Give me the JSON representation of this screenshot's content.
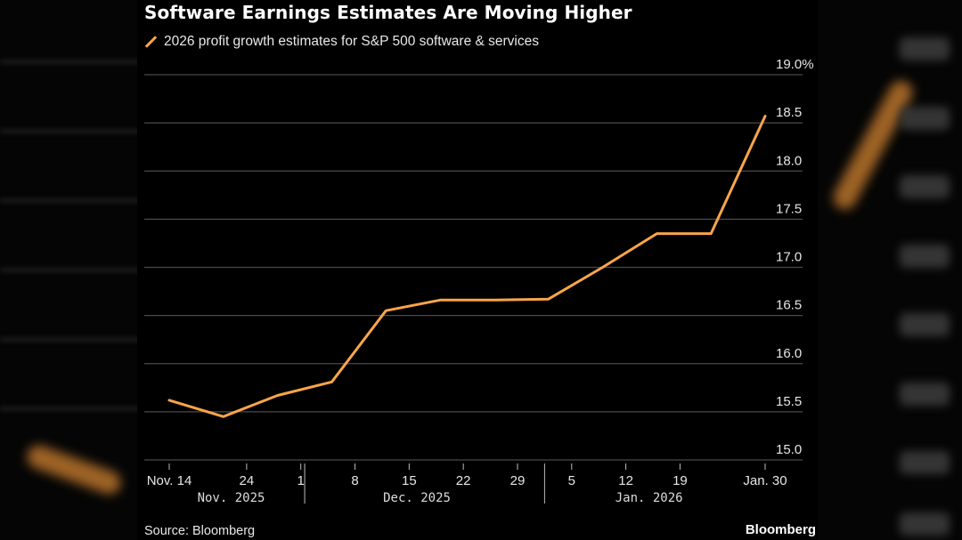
{
  "colors": {
    "series": "#f9a54a",
    "grid": "#4a4a4a",
    "background": "#000000",
    "text": "#e6e6e6"
  },
  "title": "Software Earnings Estimates Are Moving Higher",
  "source": "Source: Bloomberg",
  "brand": "Bloomberg",
  "chart_data": {
    "type": "line",
    "title": "Software Earnings Estimates Are Moving Higher",
    "xlabel": "",
    "ylabel": "",
    "ylim": [
      15.0,
      19.0
    ],
    "y_ticks": [
      {
        "value": 19.0,
        "label": "19.0%"
      },
      {
        "value": 18.5,
        "label": "18.5"
      },
      {
        "value": 18.0,
        "label": "18.0"
      },
      {
        "value": 17.5,
        "label": "17.5"
      },
      {
        "value": 17.0,
        "label": "17.0"
      },
      {
        "value": 16.5,
        "label": "16.5"
      },
      {
        "value": 16.0,
        "label": "16.0"
      },
      {
        "value": 15.5,
        "label": "15.5"
      },
      {
        "value": 15.0,
        "label": "15.0"
      }
    ],
    "x_start": "2025-11-14",
    "x_end": "2026-01-30",
    "x_ticks": [
      {
        "day": 0,
        "label": "Nov. 14"
      },
      {
        "day": 10,
        "label": "24"
      },
      {
        "day": 17,
        "label": "1"
      },
      {
        "day": 24,
        "label": "8"
      },
      {
        "day": 31,
        "label": "15"
      },
      {
        "day": 38,
        "label": "22"
      },
      {
        "day": 45,
        "label": "29"
      },
      {
        "day": 52,
        "label": "5"
      },
      {
        "day": 59,
        "label": "12"
      },
      {
        "day": 66,
        "label": "19"
      },
      {
        "day": 77,
        "label": "Jan. 30"
      }
    ],
    "month_labels": [
      {
        "label": "Nov. 2025",
        "center_day": 8
      },
      {
        "label": "Dec. 2025",
        "center_day": 32
      },
      {
        "label": "Jan. 2026",
        "center_day": 62
      }
    ],
    "month_separators": [
      17.5,
      48.5
    ],
    "legend": [
      "2026 profit growth estimates for S&P 500 software & services"
    ],
    "series": [
      {
        "name": "2026 profit growth estimates for S&P 500 software & services",
        "points": [
          {
            "day": 0,
            "value": 15.62
          },
          {
            "day": 7,
            "value": 15.45
          },
          {
            "day": 14,
            "value": 15.67
          },
          {
            "day": 21,
            "value": 15.81
          },
          {
            "day": 28,
            "value": 16.55
          },
          {
            "day": 35,
            "value": 16.66
          },
          {
            "day": 42,
            "value": 16.66
          },
          {
            "day": 49,
            "value": 16.67
          },
          {
            "day": 56,
            "value": 17.0
          },
          {
            "day": 63,
            "value": 17.35
          },
          {
            "day": 70,
            "value": 17.35
          },
          {
            "day": 77,
            "value": 18.57
          }
        ]
      }
    ]
  }
}
